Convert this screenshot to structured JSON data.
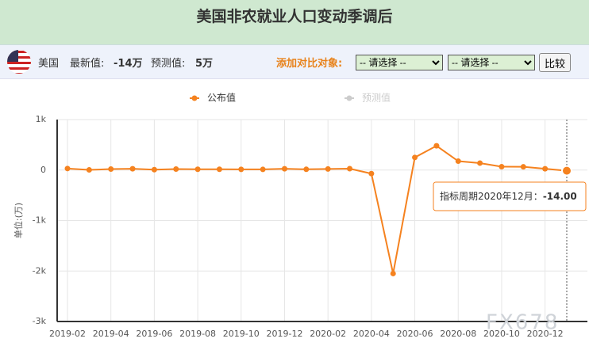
{
  "header": {
    "title": "美国非农就业人口变动季调后",
    "country": "美国",
    "latest_label": "最新值:",
    "latest_value": "-14万",
    "forecast_label": "预测值:",
    "forecast_value": "5万",
    "compare_label": "添加对比对象:",
    "select_placeholder": "-- 请选择 --",
    "compare_button": "比较"
  },
  "watermark": "FX678",
  "chart_data": {
    "type": "line",
    "y_label": "单位:(万)",
    "categories": [
      "2019-02",
      null,
      "2019-04",
      null,
      "2019-06",
      null,
      "2019-08",
      null,
      "2019-10",
      null,
      "2019-12",
      null,
      "2020-02",
      null,
      "2020-04",
      null,
      "2020-06",
      null,
      "2020-08",
      null,
      "2020-10",
      null,
      "2020-12",
      null
    ],
    "series": [
      {
        "name": "公布值",
        "color": "#f5821f",
        "values": [
          30,
          3,
          20,
          25,
          8,
          20,
          16,
          16,
          14,
          13,
          26,
          15,
          22,
          27,
          -70,
          -2050,
          250,
          480,
          176,
          138,
          66,
          64,
          25,
          -14
        ]
      },
      {
        "name": "预测值",
        "color": "#cccccc",
        "visible": false
      }
    ],
    "ylim": [
      -3000,
      1000
    ],
    "yticks": [
      {
        "value": 1000,
        "label": "1k"
      },
      0,
      {
        "value": -1000,
        "label": "-1k"
      },
      {
        "value": -2000,
        "label": "-2k"
      },
      {
        "value": -3000,
        "label": "-3k"
      }
    ],
    "grid": true,
    "tooltip": {
      "label": "指标周期2020年12月：",
      "value": "-14.00"
    }
  }
}
